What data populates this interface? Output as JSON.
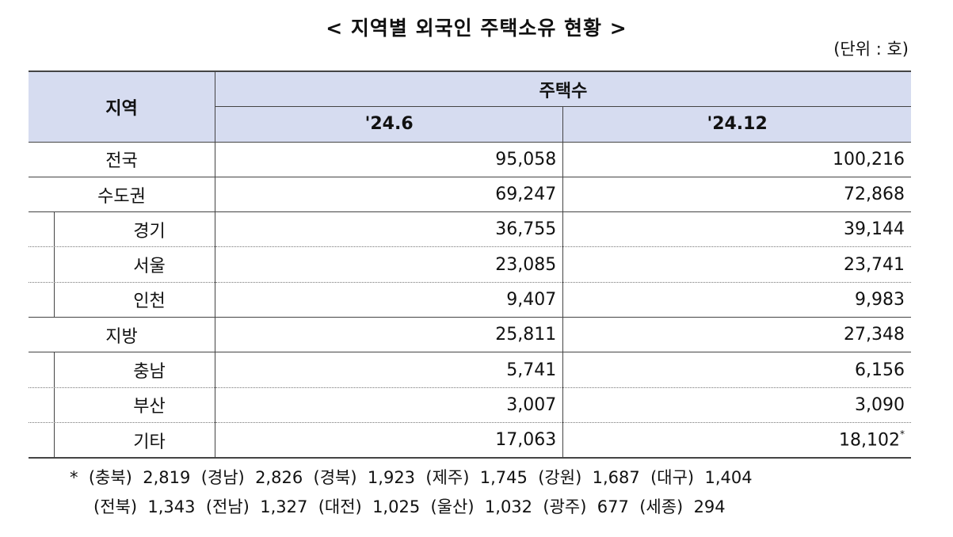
{
  "title": "< 지역별 외국인 주택소유 현황 >",
  "unit": "(단위 : 호)",
  "table": {
    "header_region": "지역",
    "header_group": "주택수",
    "header_cols": [
      "'24.6",
      "'24.12"
    ],
    "rows": [
      {
        "name": "전국",
        "v1": "95,058",
        "v2": "100,216"
      },
      {
        "name": "수도권",
        "v1": "69,247",
        "v2": "72,868"
      },
      {
        "name": "경기",
        "v1": "36,755",
        "v2": "39,144"
      },
      {
        "name": "서울",
        "v1": "23,085",
        "v2": "23,741"
      },
      {
        "name": "인천",
        "v1": "9,407",
        "v2": "9,983"
      },
      {
        "name": "지방",
        "v1": "25,811",
        "v2": "27,348"
      },
      {
        "name": "충남",
        "v1": "5,741",
        "v2": "6,156"
      },
      {
        "name": "부산",
        "v1": "3,007",
        "v2": "3,090"
      },
      {
        "name": "기타",
        "v1": "17,063",
        "v2": "18,102",
        "mark": "*"
      }
    ]
  },
  "footnote": {
    "line1": "*  (충북)  2,819  (경남)  2,826  (경북)  1,923  (제주)  1,745  (강원)  1,687  (대구)  1,404",
    "line2": "(전북)  1,343  (전남)  1,327  (대전)  1,025  (울산)  1,032  (광주)  677  (세종)  294"
  }
}
